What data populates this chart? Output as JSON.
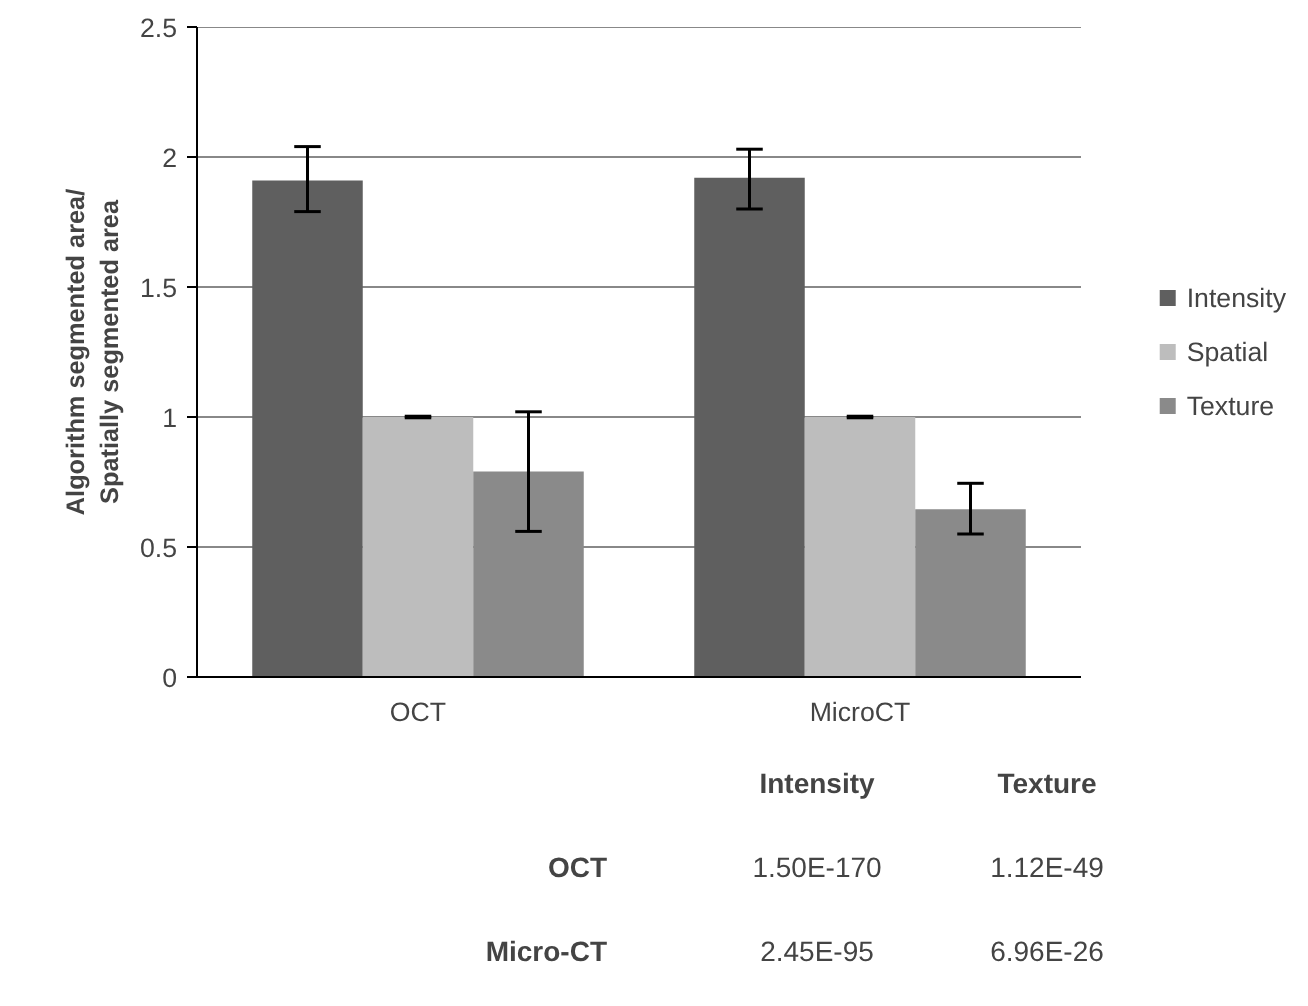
{
  "chart_data": {
    "type": "bar",
    "ylabel": "Algorithm segmented area/\nSpatially segmented area",
    "categories": [
      "OCT",
      "MicroCT"
    ],
    "series": [
      {
        "name": "Intensity",
        "color": "#5f5f5f",
        "values": [
          1.91,
          1.92
        ],
        "errors": [
          [
            1.79,
            2.04
          ],
          [
            1.8,
            2.03
          ]
        ]
      },
      {
        "name": "Spatial",
        "color": "#bdbdbd",
        "values": [
          1.0,
          1.0
        ],
        "errors": [
          0.003,
          0.003
        ]
      },
      {
        "name": "Texture",
        "color": "#8a8a8a",
        "values": [
          0.79,
          0.645
        ],
        "errors": [
          [
            0.56,
            1.02
          ],
          [
            0.55,
            0.745
          ]
        ]
      }
    ],
    "ylim": [
      0,
      2.5
    ],
    "yticks": [
      0,
      0.5,
      1,
      1.5,
      2,
      2.5
    ],
    "grid": "y",
    "legend": "right",
    "annotations": [
      "Intensity",
      "Texture",
      "OCT",
      "1.50E-170",
      "1.12E-49",
      "Micro-CT",
      "2.45E-95",
      "6.96E-26"
    ]
  }
}
